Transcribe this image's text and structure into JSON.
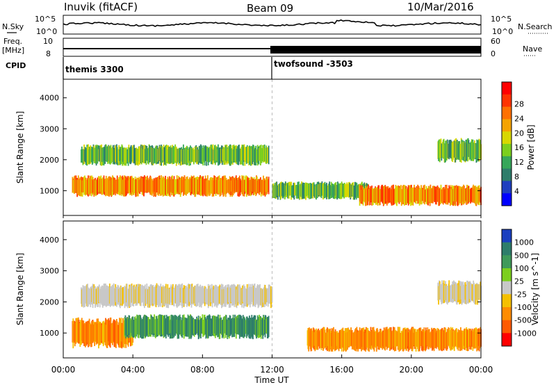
{
  "header": {
    "radar": "Inuvik (fitACF)",
    "beam": "Beam 09",
    "date": "10/Mar/2016"
  },
  "nsky_panel": {
    "left_label": "N.Sky",
    "right_label": "N.Search",
    "left_ticks": [
      "10^5",
      "10^0"
    ],
    "right_ticks": [
      "10^5",
      "10^0"
    ]
  },
  "freq_panel": {
    "left_label_1": "Freq.",
    "left_label_2": "[MHz]",
    "right_label": "Nave",
    "left_ticks": [
      "10",
      "8"
    ],
    "right_ticks": [
      "60",
      "0"
    ]
  },
  "cpid_panel": {
    "label": "CPID",
    "programs": [
      {
        "name": "themis 3300",
        "start_hour": 0
      },
      {
        "name": "twofsound -3503",
        "start_hour": 12
      }
    ]
  },
  "chart_data": [
    {
      "type": "heatmap",
      "name": "power",
      "ylabel": "Slant Range [km]",
      "y_ticks": [
        "1000",
        "2000",
        "3000",
        "4000"
      ],
      "ylim": [
        200,
        4600
      ],
      "xlim": [
        0,
        24
      ],
      "colorbar": {
        "label": "Power [dB]",
        "ticks": [
          "4",
          "8",
          "12",
          "16",
          "20",
          "24",
          "28"
        ],
        "colors": [
          "#0000ff",
          "#1f3fbf",
          "#2e7d6b",
          "#37a75a",
          "#7ccf1e",
          "#d8d800",
          "#f5a300",
          "#ff7000",
          "#ff3300",
          "#ff0000"
        ]
      },
      "bands": [
        {
          "x": [
            0.5,
            11.8
          ],
          "y": [
            800,
            1500
          ],
          "level": "high"
        },
        {
          "x": [
            1,
            11.8
          ],
          "y": [
            1800,
            2500
          ],
          "level": "mid"
        },
        {
          "x": [
            12,
            17.5
          ],
          "y": [
            700,
            1300
          ],
          "level": "mid"
        },
        {
          "x": [
            17,
            24
          ],
          "y": [
            500,
            1200
          ],
          "level": "high"
        },
        {
          "x": [
            21.5,
            24
          ],
          "y": [
            1900,
            2700
          ],
          "level": "mid"
        }
      ]
    },
    {
      "type": "heatmap",
      "name": "velocity",
      "ylabel": "Slant Range [km]",
      "y_ticks": [
        "1000",
        "2000",
        "3000",
        "4000"
      ],
      "ylim": [
        200,
        4600
      ],
      "xlim": [
        0,
        24
      ],
      "colorbar": {
        "label": "Velocity [m s^-1]",
        "ticks": [
          "1000",
          "500",
          "100",
          "25",
          "-25",
          "-100",
          "-500",
          "-1000"
        ],
        "colors": [
          "#1a3fbf",
          "#2e7d6b",
          "#3f9a5a",
          "#7ccf1e",
          "#c8c8c8",
          "#f5c000",
          "#ff8c00",
          "#ff5a00",
          "#ff0000"
        ]
      },
      "bands": [
        {
          "x": [
            0.5,
            4
          ],
          "y": [
            500,
            1500
          ],
          "class": "neg"
        },
        {
          "x": [
            3.5,
            11.8
          ],
          "y": [
            800,
            1600
          ],
          "class": "pos"
        },
        {
          "x": [
            1,
            12
          ],
          "y": [
            1800,
            2600
          ],
          "class": "zero"
        },
        {
          "x": [
            14,
            24
          ],
          "y": [
            400,
            1200
          ],
          "class": "neg"
        },
        {
          "x": [
            21.5,
            24
          ],
          "y": [
            1900,
            2700
          ],
          "class": "zero"
        }
      ]
    }
  ],
  "x_axis": {
    "ticks": [
      "00:00",
      "04:00",
      "08:00",
      "12:00",
      "16:00",
      "20:00",
      "00:00"
    ],
    "label": "Time UT"
  }
}
